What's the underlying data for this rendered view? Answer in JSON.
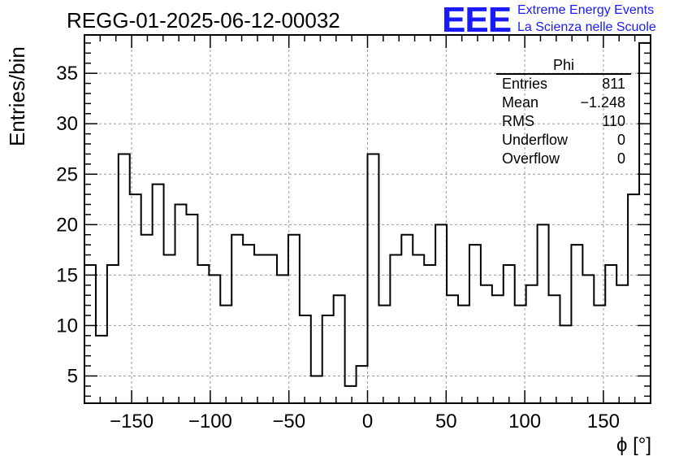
{
  "header": {
    "title": "REGG-01-2025-06-12-00032",
    "logo_text": "EEE",
    "logo_line1": "Extreme Energy Events",
    "logo_line2": "La Scienza nelle Scuole",
    "logo_color": "#1a1aff"
  },
  "stats_box": {
    "name": "Phi",
    "rows": [
      {
        "label": "Entries",
        "value": "811"
      },
      {
        "label": "Mean",
        "value": "−1.248"
      },
      {
        "label": "RMS",
        "value": "110"
      },
      {
        "label": "Underflow",
        "value": "0"
      },
      {
        "label": "Overflow",
        "value": "0"
      }
    ]
  },
  "chart_data": {
    "type": "histogram",
    "xlabel": "ϕ [°]",
    "ylabel": "Entries/bin",
    "xlim": [
      -180,
      180
    ],
    "ylim": [
      2.3,
      38.8
    ],
    "bin_width": 7.2,
    "bin_edges_start": -180,
    "values": [
      16,
      9,
      16,
      27,
      23,
      19,
      24,
      17,
      22,
      21,
      16,
      15,
      12,
      19,
      18,
      17,
      17,
      15,
      19,
      11,
      5,
      11,
      13,
      4,
      6,
      27,
      12,
      17,
      19,
      17,
      16,
      20,
      13,
      12,
      18,
      14,
      13,
      16,
      12,
      14,
      20,
      13,
      10,
      18,
      15,
      12,
      16,
      14,
      23,
      38
    ],
    "xticks": [
      -150,
      -100,
      -50,
      0,
      50,
      100,
      150
    ],
    "xtick_labels": [
      "−150",
      "−100",
      "−50",
      "0",
      "50",
      "100",
      "150"
    ],
    "yticks": [
      5,
      10,
      15,
      20,
      25,
      30,
      35
    ],
    "ytick_labels": [
      "5",
      "10",
      "15",
      "20",
      "25",
      "30",
      "35"
    ],
    "grid": true,
    "line_color": "#000000"
  }
}
